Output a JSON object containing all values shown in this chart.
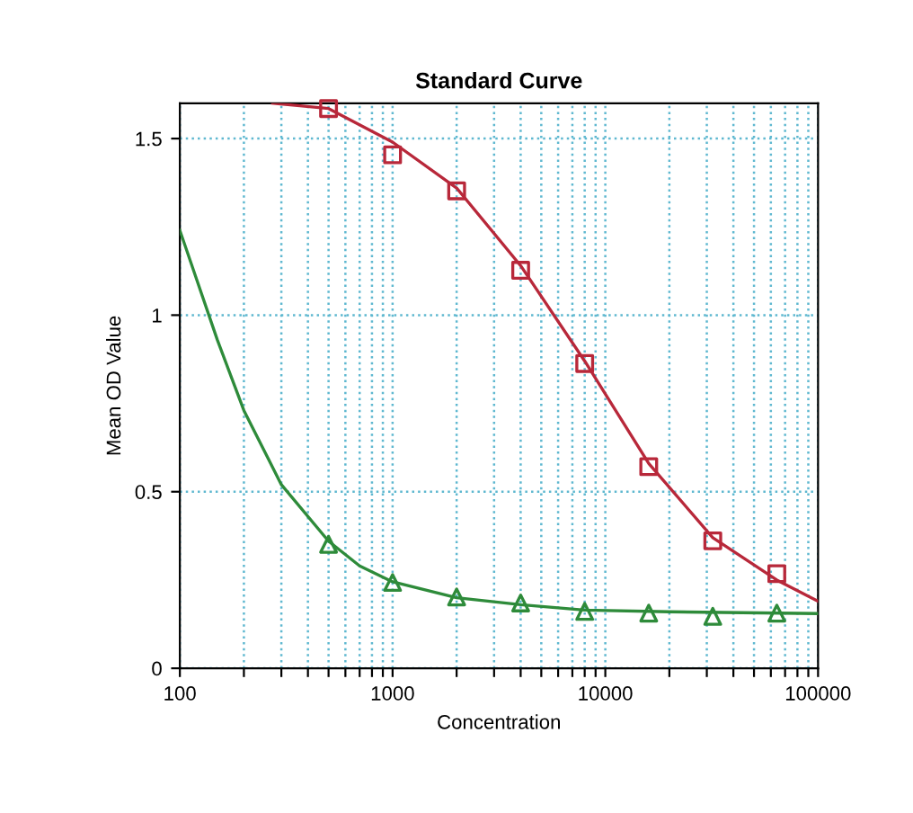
{
  "chart_data": {
    "type": "scatter",
    "title": "Standard Curve",
    "xlabel": "Concentration",
    "ylabel": "Mean OD Value",
    "log": "x",
    "grid": true,
    "legend": false,
    "xlim": [
      100,
      100000
    ],
    "ylim": [
      0,
      1.6
    ],
    "xticks": [
      100,
      {
        "value": 200,
        "label": null
      },
      {
        "value": 300,
        "label": null
      },
      {
        "value": 400,
        "label": null
      },
      {
        "value": 500,
        "label": null
      },
      {
        "value": 600,
        "label": null
      },
      {
        "value": 700,
        "label": null
      },
      {
        "value": 800,
        "label": null
      },
      {
        "value": 900,
        "label": null
      },
      1000,
      {
        "value": 2000,
        "label": null
      },
      {
        "value": 3000,
        "label": null
      },
      {
        "value": 4000,
        "label": null
      },
      {
        "value": 5000,
        "label": null
      },
      {
        "value": 6000,
        "label": null
      },
      {
        "value": 7000,
        "label": null
      },
      {
        "value": 8000,
        "label": null
      },
      {
        "value": 9000,
        "label": null
      },
      10000,
      {
        "value": 20000,
        "label": null
      },
      {
        "value": 30000,
        "label": null
      },
      {
        "value": 40000,
        "label": null
      },
      {
        "value": 50000,
        "label": null
      },
      {
        "value": 60000,
        "label": null
      },
      {
        "value": 70000,
        "label": null
      },
      {
        "value": 80000,
        "label": null
      },
      {
        "value": 90000,
        "label": null
      },
      100000
    ],
    "yticks": [
      0,
      0.5,
      1,
      1.5
    ],
    "series": [
      {
        "type": "line",
        "marker": "none",
        "line_style": "solid",
        "color": "#b8283a",
        "x": [
          273,
          500,
          1000,
          2000,
          4000,
          8000,
          16000,
          32000,
          64000,
          100000
        ],
        "values": [
          1.6,
          1.585,
          1.49,
          1.36,
          1.14,
          0.87,
          0.58,
          0.37,
          0.25,
          0.19
        ]
      },
      {
        "type": "line",
        "marker": "none",
        "line_style": "solid",
        "color": "#2e8b3a",
        "x": [
          100,
          150,
          200,
          300,
          500,
          700,
          1000,
          2000,
          4000,
          8000,
          20000,
          100000
        ],
        "values": [
          1.24,
          0.93,
          0.73,
          0.52,
          0.36,
          0.29,
          0.245,
          0.2,
          0.18,
          0.165,
          0.16,
          0.155
        ]
      },
      {
        "marker": "square",
        "color": "#b8283a",
        "x": [
          500,
          1000,
          2000,
          4000,
          8000,
          16000,
          32000,
          64000
        ],
        "values": [
          1.585,
          1.454,
          1.352,
          1.127,
          0.863,
          0.571,
          0.361,
          0.268
        ]
      },
      {
        "marker": "triangle",
        "color": "#2e8b3a",
        "x": [
          500,
          1000,
          2000,
          4000,
          8000,
          16000,
          32000,
          64000
        ],
        "values": [
          0.351,
          0.243,
          0.202,
          0.185,
          0.161,
          0.156,
          0.147,
          0.156
        ]
      }
    ]
  }
}
